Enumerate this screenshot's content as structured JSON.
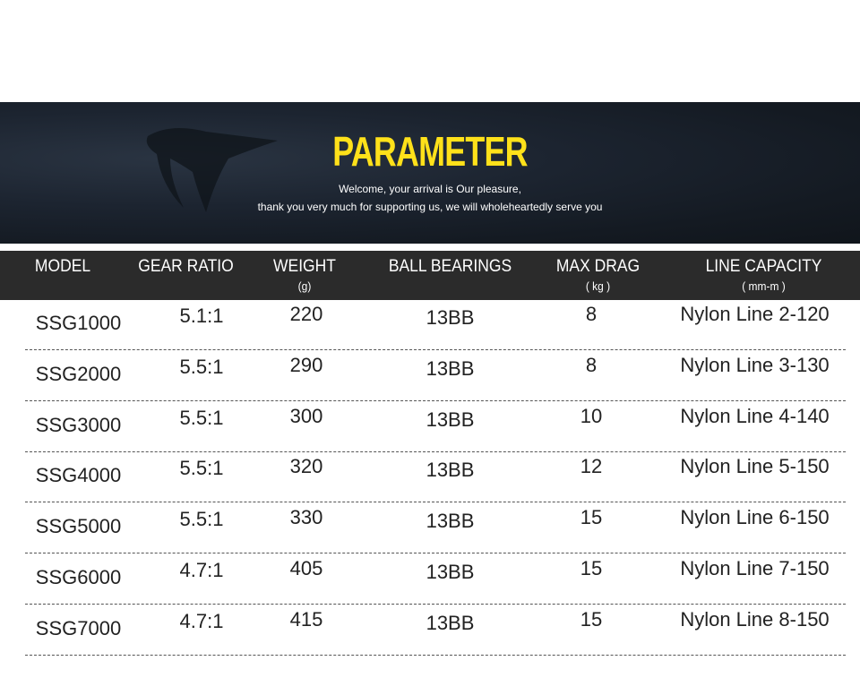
{
  "banner": {
    "title": "PARAMETER",
    "line1": "Welcome, your arrival is Our pleasure,",
    "line2": "thank you very much for supporting us, we will wholeheartedly serve you",
    "title_color": "#ffe11a"
  },
  "table": {
    "headers": [
      {
        "label": "MODEL",
        "unit": ""
      },
      {
        "label": "GEAR RATIO",
        "unit": ""
      },
      {
        "label": "WEIGHT",
        "unit": "(g)"
      },
      {
        "label": "BALL BEARINGS",
        "unit": ""
      },
      {
        "label": "MAX DRAG",
        "unit": "( kg )"
      },
      {
        "label": "LINE CAPACITY",
        "unit": "( mm-m )"
      }
    ],
    "rows": [
      [
        "SSG1000",
        "5.1:1",
        "220",
        "13BB",
        "8",
        "Nylon Line 2-120"
      ],
      [
        "SSG2000",
        "5.5:1",
        "290",
        "13BB",
        "8",
        "Nylon Line 3-130"
      ],
      [
        "SSG3000",
        "5.5:1",
        "300",
        "13BB",
        "10",
        "Nylon Line 4-140"
      ],
      [
        "SSG4000",
        "5.5:1",
        "320",
        "13BB",
        "12",
        "Nylon Line 5-150"
      ],
      [
        "SSG5000",
        "5.5:1",
        "330",
        "13BB",
        "15",
        "Nylon Line 6-150"
      ],
      [
        "SSG6000",
        "4.7:1",
        "405",
        "13BB",
        "15",
        "Nylon Line 7-150"
      ],
      [
        "SSG7000",
        "4.7:1",
        "415",
        "13BB",
        "15",
        "Nylon Line 8-150"
      ]
    ]
  }
}
